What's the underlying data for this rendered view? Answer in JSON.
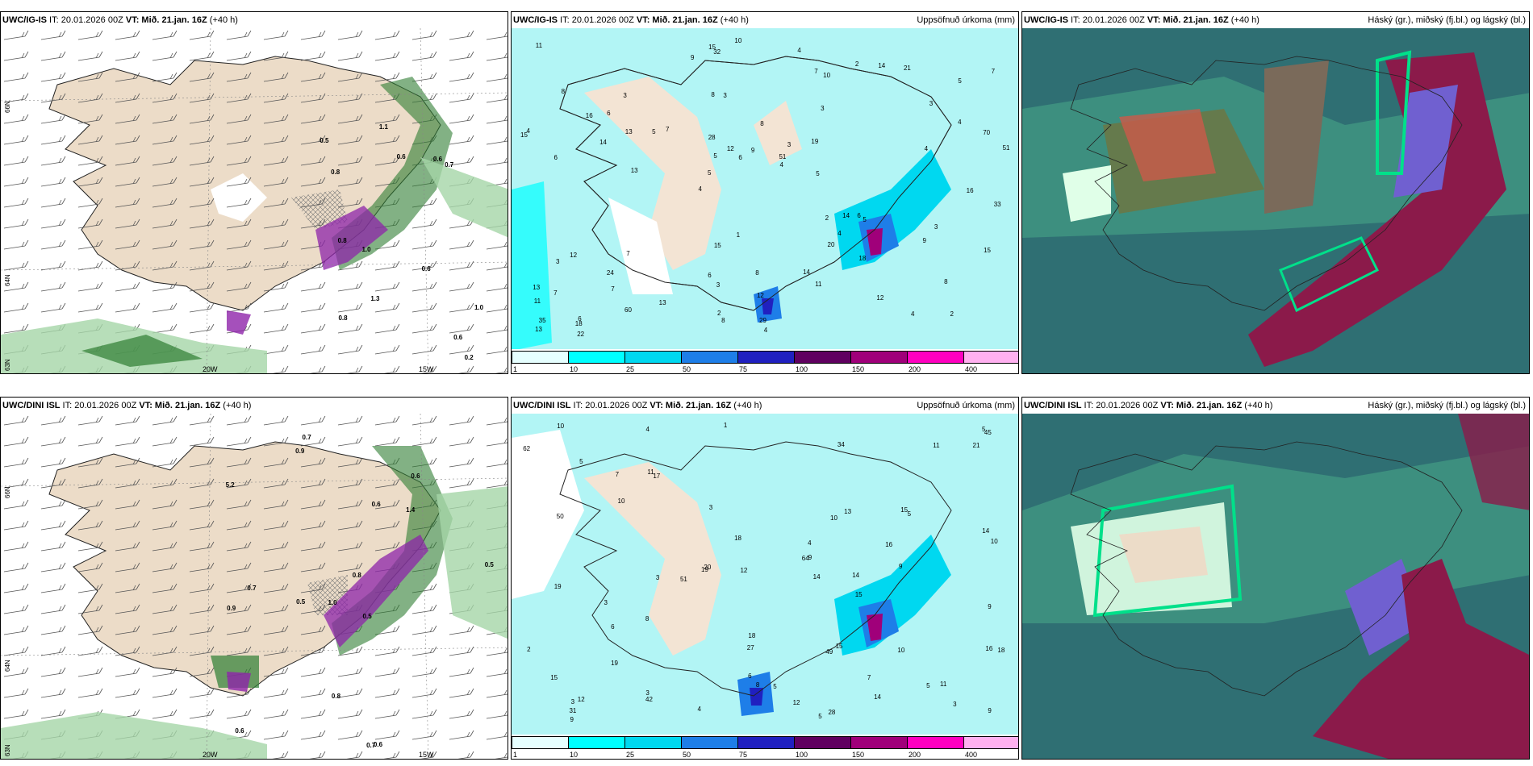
{
  "panels": {
    "tl": {
      "model": "UWC/IG-IS",
      "it": " IT: 20.01.2026 00Z ",
      "vt": "VT: Mið. 21.jan. 16Z",
      "lead": " (+40 h)",
      "right": ""
    },
    "tm": {
      "model": "UWC/IG-IS",
      "it": " IT: 20.01.2026 00Z ",
      "vt": "VT: Mið. 21.jan. 16Z",
      "lead": " (+40 h)",
      "right": "Uppsöfnuð úrkoma (mm)"
    },
    "tr": {
      "model": "UWC/IG-IS",
      "it": " IT: 20.01.2026 00Z ",
      "vt": "VT: Mið. 21.jan. 16Z",
      "lead": " (+40 h)",
      "right": "Háský (gr.), miðský (fj.bl.) og lágský (bl.)"
    },
    "bl": {
      "model": "UWC/DINI ISL",
      "it": " IT: 20.01.2026 00Z ",
      "vt": "VT: Mið. 21.jan. 16Z",
      "lead": " (+40 h)",
      "right": ""
    },
    "bm": {
      "model": "UWC/DINI ISL",
      "it": " IT: 20.01.2026 00Z ",
      "vt": "VT: Mið. 21.jan. 16Z",
      "lead": " (+40 h)",
      "right": "Uppsöfnuð úrkoma (mm)"
    },
    "br": {
      "model": "UWC/DINI ISL",
      "it": " IT: 20.01.2026 00Z ",
      "vt": "VT: Mið. 21.jan. 16Z",
      "lead": " (+40 h)",
      "right": "Háský (gr.), miðský (fj.bl.) og lágský (bl.)"
    }
  },
  "grid_labels": {
    "lat_66": "66N",
    "lat_64": "64N",
    "lat_63": "63N",
    "lon_20": "20W",
    "lon_15": "15W"
  },
  "colorbar": {
    "ticks": [
      "1",
      "10",
      "25",
      "50",
      "75",
      "100",
      "150",
      "200",
      "400"
    ],
    "colors": [
      "#e6ffff",
      "#00ffff",
      "#00d8f0",
      "#1e7ee8",
      "#2020c0",
      "#600060",
      "#a0007a",
      "#ff00c0",
      "#ffb0f0"
    ]
  },
  "precip_top": [
    "2",
    "6",
    "5",
    "4",
    "3",
    "6",
    "8",
    "8",
    "12",
    "7",
    "11",
    "7",
    "3",
    "3",
    "5",
    "8",
    "32",
    "51",
    "2",
    "4",
    "5",
    "6",
    "5",
    "3",
    "2",
    "7",
    "4",
    "8",
    "6",
    "4",
    "5",
    "14",
    "20",
    "60",
    "70",
    "51",
    "35",
    "3",
    "4",
    "3",
    "3",
    "7",
    "4",
    "11",
    "24",
    "22",
    "13",
    "8",
    "21",
    "10",
    "13",
    "4",
    "6",
    "14",
    "18",
    "4",
    "9",
    "12",
    "15",
    "15",
    "13",
    "14",
    "13",
    "13",
    "11",
    "16",
    "33",
    "28",
    "12",
    "9",
    "7",
    "5",
    "3",
    "2",
    "4",
    "1",
    "12",
    "29",
    "14",
    "15",
    "16",
    "19",
    "18",
    "6",
    "9",
    "15",
    "8",
    "7",
    "10"
  ],
  "precip_bottom": [
    "4",
    "5",
    "3",
    "7",
    "4",
    "5",
    "3",
    "3",
    "1",
    "3",
    "11",
    "8",
    "20",
    "27",
    "34",
    "64",
    "50",
    "42",
    "51",
    "62",
    "49",
    "45",
    "4",
    "3",
    "5",
    "3",
    "2",
    "6",
    "10",
    "15",
    "12",
    "28",
    "18",
    "21",
    "19",
    "14",
    "16",
    "15",
    "13",
    "11",
    "9",
    "16",
    "18",
    "12",
    "17",
    "15",
    "9",
    "12",
    "7",
    "6",
    "5",
    "14",
    "9",
    "10",
    "8",
    "15",
    "19",
    "18",
    "11",
    "19",
    "5",
    "14",
    "10",
    "9",
    "5",
    "31",
    "14",
    "10",
    "9",
    "10"
  ],
  "snow_top": [
    "0.2",
    "0.8",
    "0.6",
    "0.5",
    "1.0",
    "0.8",
    "0.8",
    "1.0",
    "0.7",
    "0.6",
    "0.6",
    "0.6",
    "1.3",
    "1.1"
  ],
  "snow_bottom": [
    "0.7",
    "0.6",
    "0.5",
    "1.0",
    "0.5",
    "0.7",
    "5.2",
    "1.4",
    "0.9",
    "0.6",
    "0.8",
    "0.6",
    "0.9",
    "0.5",
    "0.7",
    "0.6",
    "0.8"
  ]
}
